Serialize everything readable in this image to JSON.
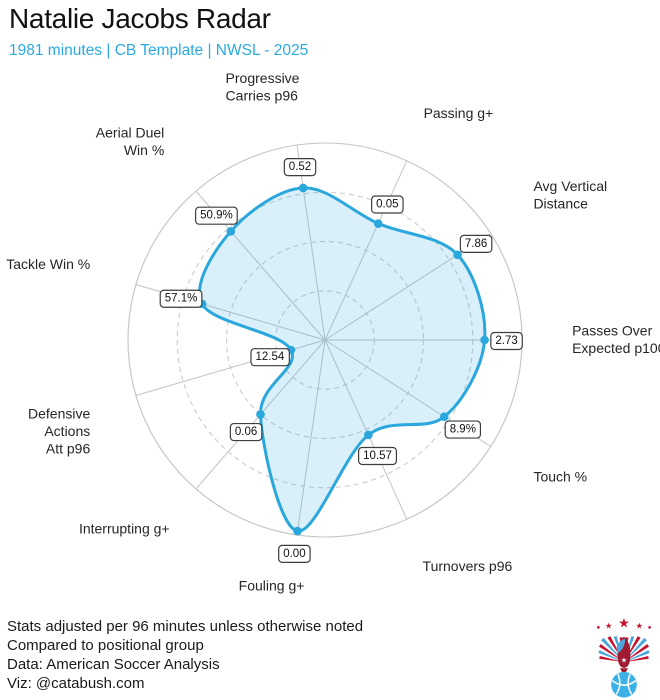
{
  "header": {
    "title": "Natalie Jacobs Radar",
    "subtitle": "1981 minutes | CB Template | NWSL - 2025"
  },
  "colors": {
    "accent_blue": "#29ABE2",
    "radar_line": "#2AA7DC",
    "radar_fill_opacity": 0.18,
    "grid": "#c4c4c4",
    "grid_dashed": "#cbcbcb",
    "value_box_border": "#3d3d3d",
    "axis_label_text": "#262626",
    "text_dark": "#1a1a1a",
    "logo_red": "#C8102E",
    "logo_dark_red": "#9e1b32",
    "logo_blue": "#4BA7D9",
    "logo_ball_blue": "#3BB1E5"
  },
  "chart_data": {
    "type": "radar",
    "title": "Natalie Jacobs Radar",
    "legend": "none",
    "rings_percentile": [
      25,
      50,
      75,
      100
    ],
    "note": "radius encodes percentile vs positional group; boxed labels show raw stat values",
    "categories": [
      {
        "label": "Progressive Carries p96",
        "label_lines": [
          "Progressive",
          "Carries p96"
        ],
        "value": "0.52",
        "percentile": 78,
        "angle_deg": 98.18
      },
      {
        "label": "Passing g+",
        "label_lines": [
          "Passing g+"
        ],
        "value": "0.05",
        "percentile": 65,
        "angle_deg": 65.45
      },
      {
        "label": "Avg Vertical Distance",
        "label_lines": [
          "Avg Vertical",
          "Distance"
        ],
        "value": "7.86",
        "percentile": 80,
        "angle_deg": 32.73
      },
      {
        "label": "Passes Over Expected p100",
        "label_lines": [
          "Passes Over",
          "Expected p100"
        ],
        "value": "2.73",
        "percentile": 81,
        "angle_deg": 0
      },
      {
        "label": "Touch %",
        "label_lines": [
          "Touch %"
        ],
        "value": "8.9%",
        "percentile": 72,
        "angle_deg": -32.73
      },
      {
        "label": "Turnovers p96",
        "label_lines": [
          "Turnovers p96"
        ],
        "value": "10.57",
        "percentile": 53,
        "angle_deg": -65.45
      },
      {
        "label": "Fouling g+",
        "label_lines": [
          "Fouling g+"
        ],
        "value": "0.00",
        "percentile": 98,
        "angle_deg": -98.18
      },
      {
        "label": "Interrupting g+",
        "label_lines": [
          "Interrupting g+"
        ],
        "value": "0.06",
        "percentile": 50,
        "angle_deg": -130.91
      },
      {
        "label": "Defensive Actions Att p96",
        "label_lines": [
          "Defensive",
          "Actions",
          "Att p96"
        ],
        "value": "12.54",
        "percentile": 18,
        "angle_deg": -163.64
      },
      {
        "label": "Tackle Win %",
        "label_lines": [
          "Tackle Win %"
        ],
        "value": "57.1%",
        "percentile": 65,
        "angle_deg": 163.64
      },
      {
        "label": "Aerial Duel Win %",
        "label_lines": [
          "Aerial Duel",
          "Win %"
        ],
        "value": "50.9%",
        "percentile": 73,
        "angle_deg": 130.91
      }
    ]
  },
  "footer": {
    "lines": [
      "Stats adjusted per 96 minutes unless otherwise noted",
      "Compared to positional group",
      "Data: American Soccer Analysis",
      "Viz: @catabush.com"
    ]
  },
  "logo": {
    "icon": "eagle-soccer-ball-crest"
  }
}
